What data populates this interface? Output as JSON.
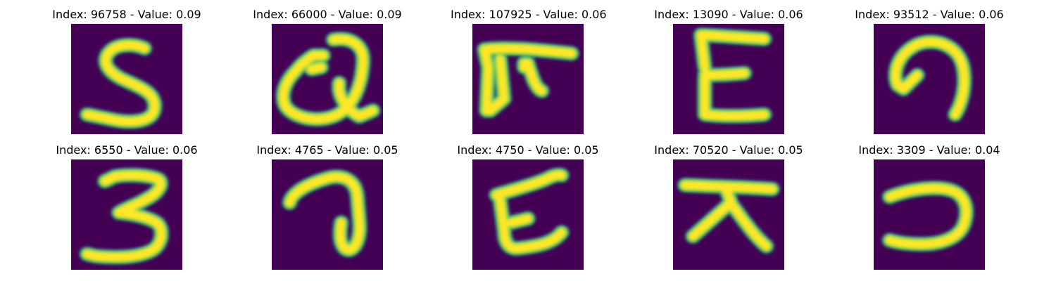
{
  "colors": {
    "background": "#440154",
    "edge": "#21918c",
    "mid": "#5ec962",
    "stroke": "#fde725"
  },
  "panels": [
    {
      "title": "Index: 96758 - Value: 0.09",
      "glyph": "s-icon"
    },
    {
      "title": "Index: 66000 - Value: 0.09",
      "glyph": "q-icon"
    },
    {
      "title": "Index: 107925 - Value: 0.06",
      "glyph": "pi-icon"
    },
    {
      "title": "Index: 13090 - Value: 0.06",
      "glyph": "e-icon"
    },
    {
      "title": "Index: 93512 - Value: 0.06",
      "glyph": "arch-icon"
    },
    {
      "title": "Index: 6550 - Value: 0.06",
      "glyph": "three-icon"
    },
    {
      "title": "Index: 4765 - Value: 0.05",
      "glyph": "seven-icon"
    },
    {
      "title": "Index: 4750 - Value: 0.05",
      "glyph": "g-icon"
    },
    {
      "title": "Index: 70520 - Value: 0.05",
      "glyph": "tent-icon"
    },
    {
      "title": "Index: 3309 - Value: 0.04",
      "glyph": "reverse-c-icon"
    }
  ]
}
